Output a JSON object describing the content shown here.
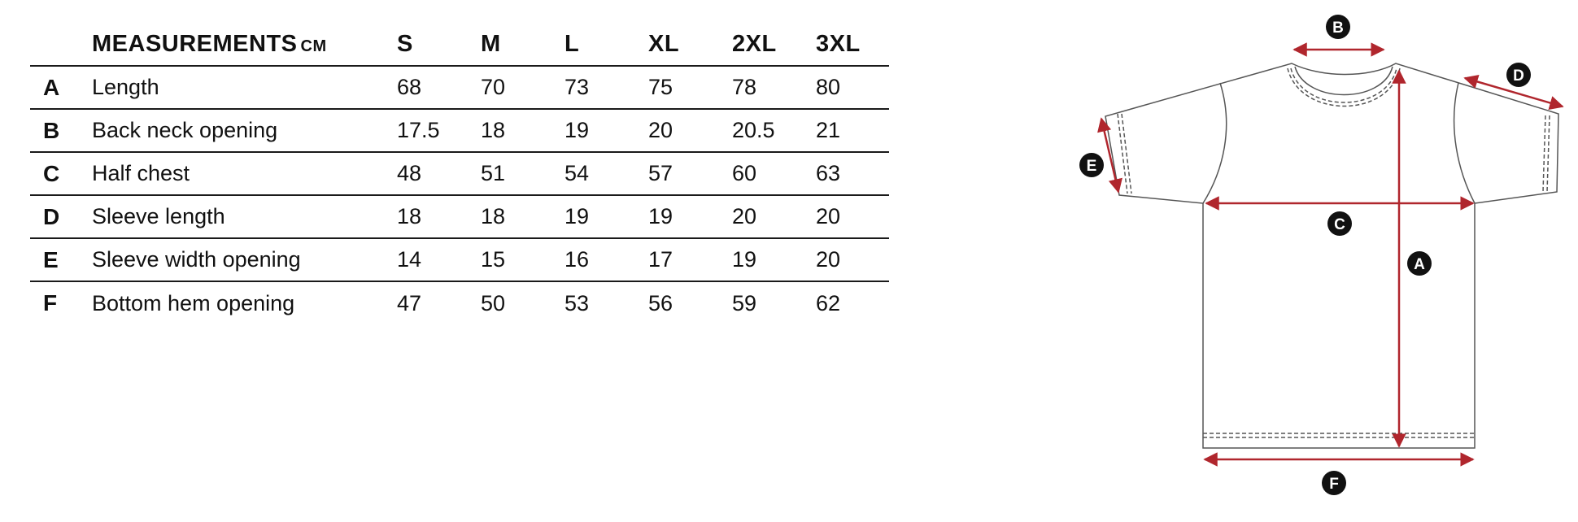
{
  "table": {
    "header_label": "MEASUREMENTS",
    "header_unit": "CM",
    "sizes": [
      "S",
      "M",
      "L",
      "XL",
      "2XL",
      "3XL"
    ],
    "rows": [
      {
        "letter": "A",
        "name": "Length",
        "values": [
          "68",
          "70",
          "73",
          "75",
          "78",
          "80"
        ]
      },
      {
        "letter": "B",
        "name": "Back neck opening",
        "values": [
          "17.5",
          "18",
          "19",
          "20",
          "20.5",
          "21"
        ]
      },
      {
        "letter": "C",
        "name": "Half chest",
        "values": [
          "48",
          "51",
          "54",
          "57",
          "60",
          "63"
        ]
      },
      {
        "letter": "D",
        "name": "Sleeve length",
        "values": [
          "18",
          "18",
          "19",
          "19",
          "20",
          "20"
        ]
      },
      {
        "letter": "E",
        "name": "Sleeve width opening",
        "values": [
          "14",
          "15",
          "16",
          "17",
          "19",
          "20"
        ]
      },
      {
        "letter": "F",
        "name": "Bottom hem opening",
        "values": [
          "47",
          "50",
          "53",
          "56",
          "59",
          "62"
        ]
      }
    ]
  },
  "diagram": {
    "labels": {
      "A": "A",
      "B": "B",
      "C": "C",
      "D": "D",
      "E": "E",
      "F": "F"
    },
    "colors": {
      "arrow": "#b0262d",
      "outline": "#555555",
      "badge": "#111111"
    },
    "icon": "tshirt-outline"
  }
}
